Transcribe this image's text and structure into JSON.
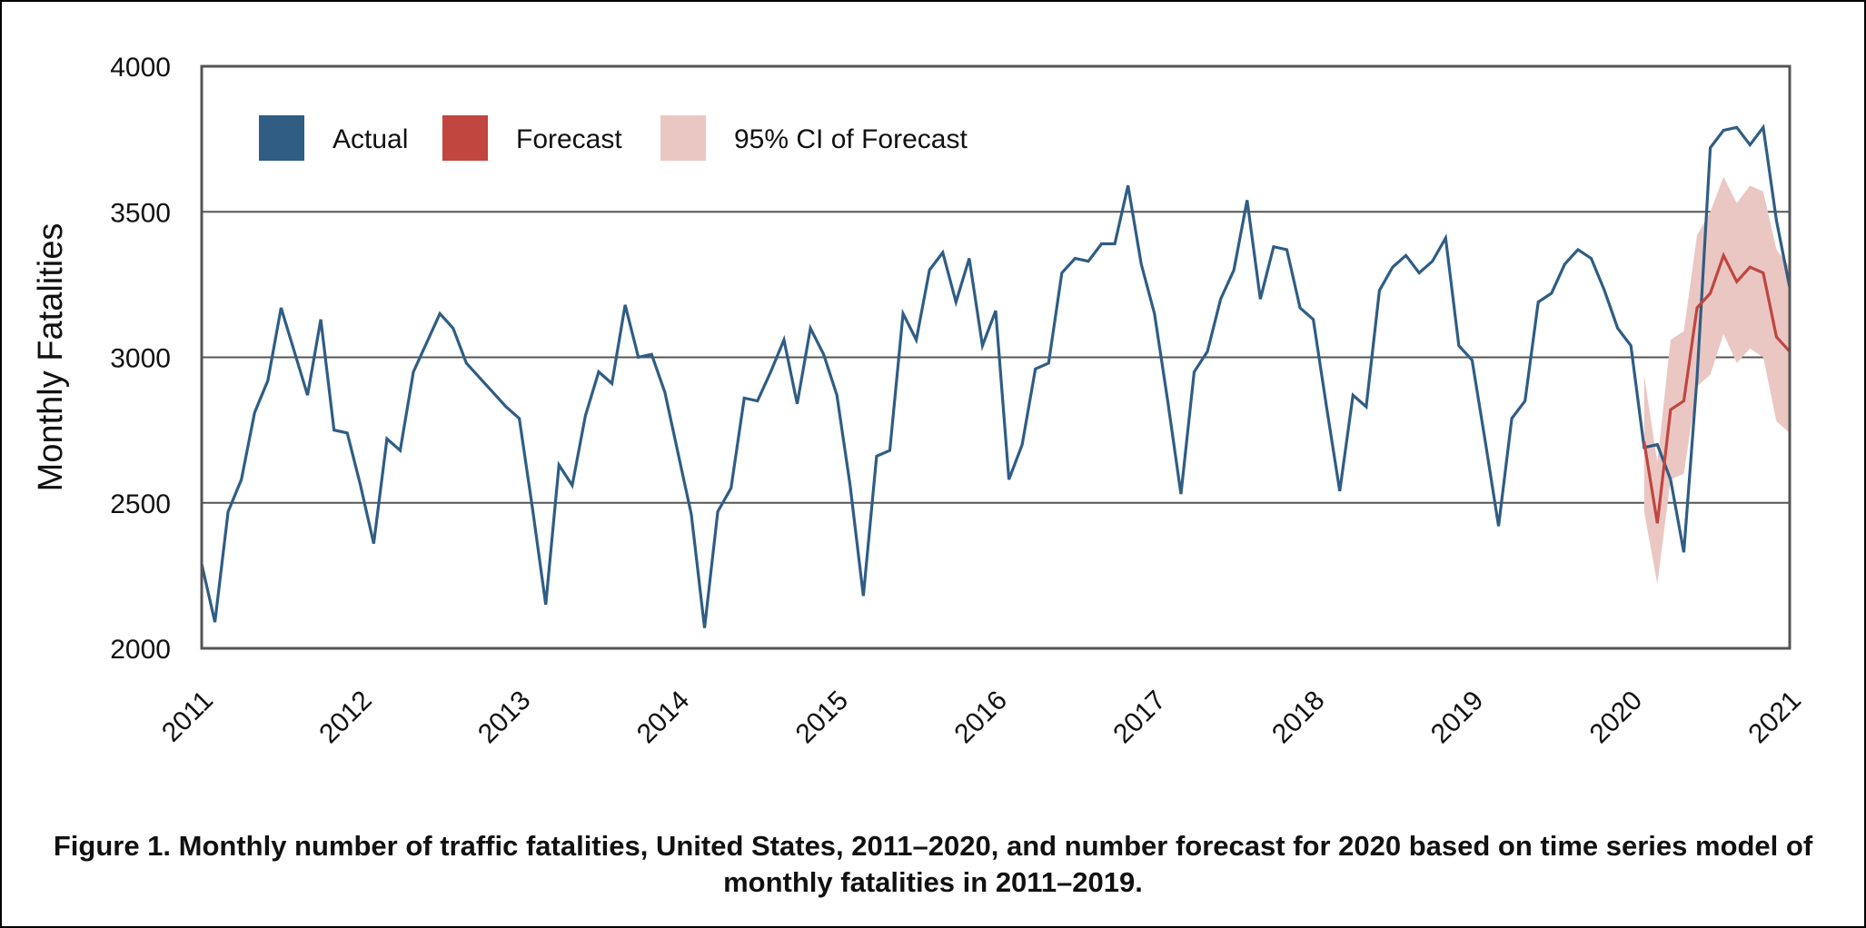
{
  "chart_data": {
    "type": "line",
    "title": "",
    "xlabel": "",
    "ylabel": "Monthly Fatalities",
    "ylim": [
      2000,
      4000
    ],
    "xlim": [
      2011,
      2021
    ],
    "yticks": [
      "2000",
      "2500",
      "3000",
      "3500",
      "4000"
    ],
    "xticks": [
      "2011",
      "2012",
      "2013",
      "2014",
      "2015",
      "2016",
      "2017",
      "2018",
      "2019",
      "2020",
      "2021"
    ],
    "grid_values": [
      2500,
      3000,
      3500
    ],
    "legend": {
      "position": "top-left",
      "entries": [
        {
          "label": "Actual",
          "color": "#2f5d84"
        },
        {
          "label": "Forecast",
          "color": "#c0463f"
        },
        {
          "label": "95% CI of Forecast",
          "color": "#ebc7c4"
        }
      ]
    },
    "series": [
      {
        "name": "Actual",
        "color": "#2f5d84",
        "start_year": 2011,
        "step_months": 1,
        "values": [
          2290,
          2090,
          2470,
          2580,
          2810,
          2920,
          3170,
          3020,
          2870,
          3130,
          2750,
          2740,
          2560,
          2360,
          2720,
          2680,
          2950,
          3050,
          3150,
          3100,
          2980,
          2930,
          2880,
          2830,
          2790,
          2480,
          2150,
          2630,
          2560,
          2800,
          2950,
          2910,
          3180,
          3000,
          3010,
          2880,
          2670,
          2460,
          2070,
          2470,
          2550,
          2860,
          2850,
          2950,
          3060,
          2840,
          3100,
          3010,
          2870,
          2560,
          2180,
          2660,
          2680,
          3150,
          3060,
          3300,
          3360,
          3190,
          3340,
          3040,
          3160,
          2580,
          2700,
          2960,
          2980,
          3290,
          3340,
          3330,
          3390,
          3390,
          3590,
          3320,
          3150,
          2850,
          2530,
          2950,
          3020,
          3200,
          3300,
          3540,
          3200,
          3380,
          3370,
          3170,
          3130,
          2830,
          2540,
          2870,
          2830,
          3230,
          3310,
          3350,
          3290,
          3330,
          3410,
          3040,
          2990,
          2710,
          2420,
          2790,
          2850,
          3190,
          3220,
          3320,
          3370,
          3340,
          3230,
          3100,
          3040,
          2690,
          2700,
          2580,
          2330,
          2930,
          3720,
          3780,
          3790,
          3730,
          3790,
          3470,
          3240
        ]
      },
      {
        "name": "Forecast",
        "color": "#c0463f",
        "start_year": 2020.0833,
        "step_months": 1,
        "values": [
          2710,
          2430,
          2820,
          2850,
          3170,
          3220,
          3350,
          3260,
          3310,
          3290,
          3070,
          3020
        ]
      },
      {
        "name": "95% CI of Forecast",
        "color": "#ebc7c4",
        "start_year": 2020.0833,
        "step_months": 1,
        "lower": [
          2470,
          2220,
          2580,
          2600,
          2900,
          2940,
          3080,
          2980,
          3030,
          3000,
          2780,
          2740
        ],
        "upper": [
          2940,
          2640,
          3060,
          3090,
          3420,
          3500,
          3620,
          3530,
          3590,
          3570,
          3370,
          3310
        ]
      }
    ]
  },
  "caption": {
    "line1": "Figure 1. Monthly number of traffic fatalities, United States, 2011–2020, and number forecast for 2020 based on time series model of",
    "line2": "monthly fatalities in 2011–2019."
  }
}
